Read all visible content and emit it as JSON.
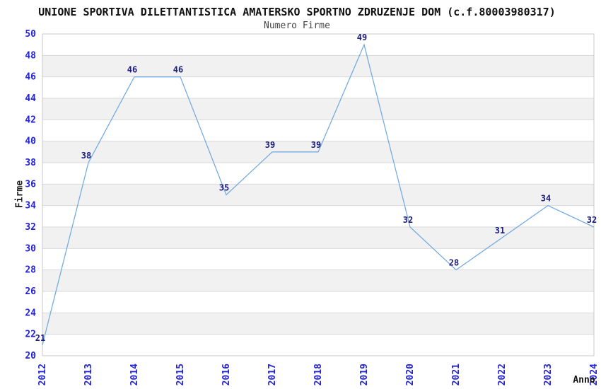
{
  "chart_data": {
    "type": "line",
    "title": "UNIONE SPORTIVA DILETTANTISTICA AMATERSKO SPORTNO ZDRUZENJE DOM (c.f.80003980317)",
    "subtitle": "Numero Firme",
    "xlabel": "Anno",
    "ylabel": "Firme",
    "categories": [
      "2012",
      "2013",
      "2014",
      "2015",
      "2016",
      "2017",
      "2018",
      "2019",
      "2020",
      "2021",
      "2022",
      "2023",
      "2024"
    ],
    "values": [
      21,
      38,
      46,
      46,
      35,
      39,
      39,
      49,
      32,
      28,
      31,
      34,
      32
    ],
    "ylim": [
      20,
      50
    ],
    "ytick_step": 2,
    "grid": "horizontal",
    "background_bands": "alternating",
    "legend": "none",
    "data_labels": true,
    "colors": {
      "line": "#76ace0",
      "tick": "#2323d7",
      "point_label": "#1c1c80",
      "band": "#f1f1f1",
      "grid": "#d9d9d9",
      "border": "#c9c9c9"
    }
  }
}
